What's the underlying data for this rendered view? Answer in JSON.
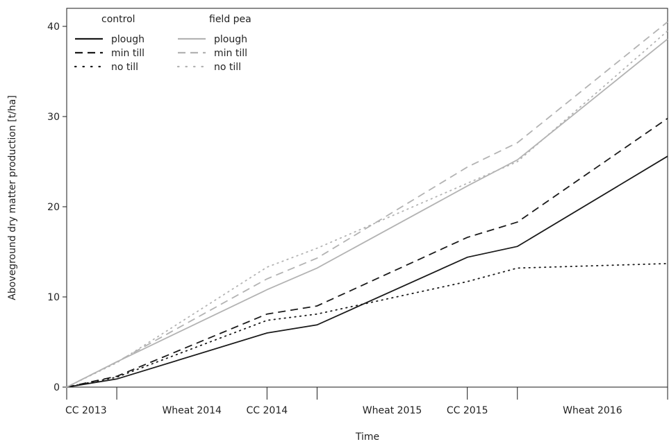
{
  "chart_data": {
    "type": "line",
    "xlabel": "Time",
    "ylabel": "Aboveground dry matter production [t/ha]",
    "categories": [
      "CC 2013",
      "Wheat 2014",
      "CC 2014",
      "Wheat 2015",
      "CC 2015",
      "Wheat 2016"
    ],
    "ylim": [
      0,
      42
    ],
    "yticks": [
      0,
      10,
      20,
      30,
      40
    ],
    "grid": false,
    "legend_placement": "top-left",
    "x": [
      0,
      0.25,
      1.0,
      1.25,
      2.0,
      2.25,
      3.0
    ],
    "legend_groups": [
      {
        "title": "control",
        "entries": [
          "plough",
          "min till",
          "no till"
        ]
      },
      {
        "title": "field pea",
        "entries": [
          "plough",
          "min till",
          "no till"
        ]
      }
    ],
    "series": [
      {
        "group": "control",
        "name": "plough",
        "color": "#1a1a1a",
        "style": "solid",
        "values": [
          0,
          0.9,
          6.0,
          6.9,
          14.4,
          15.6,
          25.6
        ]
      },
      {
        "group": "control",
        "name": "min till",
        "color": "#1a1a1a",
        "style": "dashed",
        "values": [
          0,
          1.2,
          8.1,
          9.0,
          16.6,
          18.3,
          29.8
        ]
      },
      {
        "group": "control",
        "name": "no till",
        "color": "#1a1a1a",
        "style": "dotted",
        "values": [
          0,
          1.1,
          7.4,
          8.1,
          11.7,
          13.2,
          13.7
        ]
      },
      {
        "group": "field pea",
        "name": "plough",
        "color": "#b3b3b3",
        "style": "solid",
        "values": [
          0,
          2.8,
          10.8,
          13.2,
          22.3,
          25.2,
          38.6
        ]
      },
      {
        "group": "field pea",
        "name": "min till",
        "color": "#b3b3b3",
        "style": "dashed",
        "values": [
          0,
          2.8,
          12.0,
          14.3,
          24.4,
          27.1,
          40.5
        ]
      },
      {
        "group": "field pea",
        "name": "no till",
        "color": "#b3b3b3",
        "style": "dotted",
        "values": [
          0,
          2.7,
          13.3,
          15.4,
          22.6,
          25.0,
          39.5
        ]
      }
    ]
  }
}
